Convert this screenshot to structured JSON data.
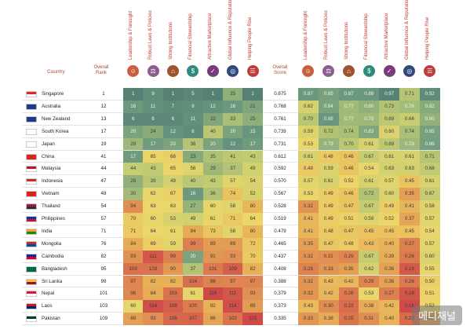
{
  "columns": {
    "country": "Country",
    "overall_rank": "Overall Rank",
    "overall_score": "Overall Score",
    "indicators": [
      {
        "label": "Leadership & Foresight",
        "icon": "person-icon",
        "color": "#c8603f"
      },
      {
        "label": "Robust Laws & Policies",
        "icon": "scales-icon",
        "color": "#8c5d8f"
      },
      {
        "label": "Strong Institutions",
        "icon": "bank-icon",
        "color": "#a0522d"
      },
      {
        "label": "Financial Stewardship",
        "icon": "dollar-icon",
        "color": "#2f8a7b"
      },
      {
        "label": "Attractive Marketplace",
        "icon": "cart-icon",
        "color": "#7b3b7b"
      },
      {
        "label": "Global Influence & Reputation",
        "icon": "globe-icon",
        "color": "#2f4a7a"
      },
      {
        "label": "Helping People Rise",
        "icon": "ladder-icon",
        "color": "#c23b3b"
      }
    ]
  },
  "rows": [
    {
      "country": "Singapore",
      "flag": "singapore",
      "rank": "1",
      "ranks": [
        "1",
        "9",
        "1",
        "5",
        "1",
        "25",
        "1"
      ],
      "score": "0.875",
      "scores": [
        "0.87",
        "0.85",
        "0.87",
        "0.88",
        "0.97",
        "0.71",
        "0.92"
      ]
    },
    {
      "country": "Australia",
      "flag": "australia",
      "rank": "12",
      "ranks": [
        "16",
        "11",
        "7",
        "9",
        "12",
        "16",
        "21"
      ],
      "score": "0.768",
      "scores": [
        "0.62",
        "0.84",
        "0.77",
        "0.80",
        "0.73",
        "0.76",
        "0.82"
      ]
    },
    {
      "country": "New Zealand",
      "flag": "new-zealand",
      "rank": "13",
      "ranks": [
        "6",
        "6",
        "6",
        "11",
        "22",
        "33",
        "25"
      ],
      "score": "0.761",
      "scores": [
        "0.70",
        "0.88",
        "0.77",
        "0.78",
        "0.69",
        "0.66",
        "0.80"
      ]
    },
    {
      "country": "South Korea",
      "flag": "south-korea",
      "rank": "17",
      "ranks": [
        "20",
        "24",
        "12",
        "8",
        "40",
        "20",
        "15"
      ],
      "score": "0.739",
      "scores": [
        "0.59",
        "0.72",
        "0.74",
        "0.83",
        "0.60",
        "0.74",
        "0.85"
      ]
    },
    {
      "country": "Japan",
      "flag": "japan",
      "rank": "19",
      "ranks": [
        "29",
        "17",
        "20",
        "38",
        "20",
        "12",
        "17"
      ],
      "score": "0.731",
      "scores": [
        "0.53",
        "0.79",
        "0.70",
        "0.61",
        "0.69",
        "0.78",
        "0.86"
      ]
    },
    {
      "country": "China",
      "flag": "china",
      "rank": "41",
      "ranks": [
        "17",
        "65",
        "68",
        "23",
        "35",
        "41",
        "43"
      ],
      "score": "0.612",
      "scores": [
        "0.61",
        "0.48",
        "0.46",
        "0.67",
        "0.61",
        "0.61",
        "0.71"
      ]
    },
    {
      "country": "Malaysia",
      "flag": "malaysia",
      "rank": "44",
      "ranks": [
        "44",
        "43",
        "65",
        "56",
        "29",
        "37",
        "49"
      ],
      "score": "0.592",
      "scores": [
        "0.48",
        "0.59",
        "0.46",
        "0.54",
        "0.63",
        "0.63",
        "0.68"
      ]
    },
    {
      "country": "Indonesia",
      "flag": "indonesia",
      "rank": "47",
      "ranks": [
        "26",
        "39",
        "49",
        "40",
        "43",
        "57",
        "54"
      ],
      "score": "0.570",
      "scores": [
        "0.57",
        "0.61",
        "0.52",
        "0.61",
        "0.57",
        "0.45",
        "0.61"
      ]
    },
    {
      "country": "Vietnam",
      "flag": "vietnam",
      "rank": "48",
      "ranks": [
        "30",
        "62",
        "67",
        "16",
        "36",
        "74",
        "52"
      ],
      "score": "0.567",
      "scores": [
        "0.53",
        "0.49",
        "0.46",
        "0.72",
        "0.60",
        "0.35",
        "0.67"
      ]
    },
    {
      "country": "Thailand",
      "flag": "thailand",
      "rank": "54",
      "ranks": [
        "94",
        "63",
        "63",
        "27",
        "60",
        "58",
        "80"
      ],
      "score": "0.528",
      "scores": [
        "0.32",
        "0.49",
        "0.47",
        "0.67",
        "0.49",
        "0.41",
        "0.58"
      ]
    },
    {
      "country": "Philippines",
      "flag": "philippines",
      "rank": "57",
      "ranks": [
        "70",
        "60",
        "53",
        "49",
        "61",
        "71",
        "64"
      ],
      "score": "0.519",
      "scores": [
        "0.41",
        "0.49",
        "0.51",
        "0.59",
        "0.52",
        "0.37",
        "0.57"
      ]
    },
    {
      "country": "India",
      "flag": "india",
      "rank": "71",
      "ranks": [
        "71",
        "64",
        "61",
        "84",
        "73",
        "58",
        "80"
      ],
      "score": "0.479",
      "scores": [
        "0.41",
        "0.48",
        "0.47",
        "0.45",
        "0.45",
        "0.45",
        "0.54"
      ]
    },
    {
      "country": "Mongolia",
      "flag": "mongolia",
      "rank": "76",
      "ranks": [
        "84",
        "69",
        "59",
        "99",
        "89",
        "89",
        "72"
      ],
      "score": "0.465",
      "scores": [
        "0.35",
        "0.47",
        "0.48",
        "0.43",
        "0.40",
        "0.27",
        "0.57"
      ]
    },
    {
      "country": "Cambodia",
      "flag": "cambodia",
      "rank": "82",
      "ranks": [
        "93",
        "111",
        "99",
        "20",
        "91",
        "93",
        "70"
      ],
      "score": "0.437",
      "scores": [
        "0.32",
        "0.31",
        "0.29",
        "0.67",
        "0.39",
        "0.26",
        "0.60"
      ]
    },
    {
      "country": "Bangladesh",
      "flag": "bangladesh",
      "rank": "95",
      "ranks": [
        "103",
        "103",
        "90",
        "37",
        "101",
        "109",
        "82"
      ],
      "score": "0.408",
      "scores": [
        "0.28",
        "0.33",
        "0.35",
        "0.62",
        "0.36",
        "0.19",
        "0.55"
      ]
    },
    {
      "country": "Sri Lanka",
      "flag": "sri-lanka",
      "rank": "99",
      "ranks": [
        "97",
        "82",
        "82",
        "104",
        "98",
        "97",
        "97"
      ],
      "score": "0.388",
      "scores": [
        "0.32",
        "0.43",
        "0.42",
        "0.29",
        "0.36",
        "0.26",
        "0.50"
      ]
    },
    {
      "country": "Nepal",
      "flag": "nepal",
      "rank": "101",
      "ranks": [
        "96",
        "84",
        "103",
        "61",
        "116",
        "111",
        "93"
      ],
      "score": "0.379",
      "scores": [
        "0.32",
        "0.42",
        "0.26",
        "0.53",
        "0.27",
        "0.18",
        "0.51"
      ]
    },
    {
      "country": "Laos",
      "flag": "laos",
      "rank": "103",
      "ranks": [
        "60",
        "114",
        "109",
        "100",
        "82",
        "114",
        "89"
      ],
      "score": "0.373",
      "scores": [
        "0.43",
        "0.30",
        "0.23",
        "0.38",
        "0.42",
        "0.16",
        "0.52"
      ]
    },
    {
      "country": "Pakistan",
      "flag": "pakistan",
      "rank": "109",
      "ranks": [
        "88",
        "93",
        "106",
        "107",
        "86",
        "102",
        "115"
      ],
      "score": "0.335",
      "scores": [
        "0.33",
        "0.38",
        "0.25",
        "0.31",
        "0.40",
        "0.23",
        "0.37"
      ]
    }
  ],
  "watermark": "메디채널"
}
